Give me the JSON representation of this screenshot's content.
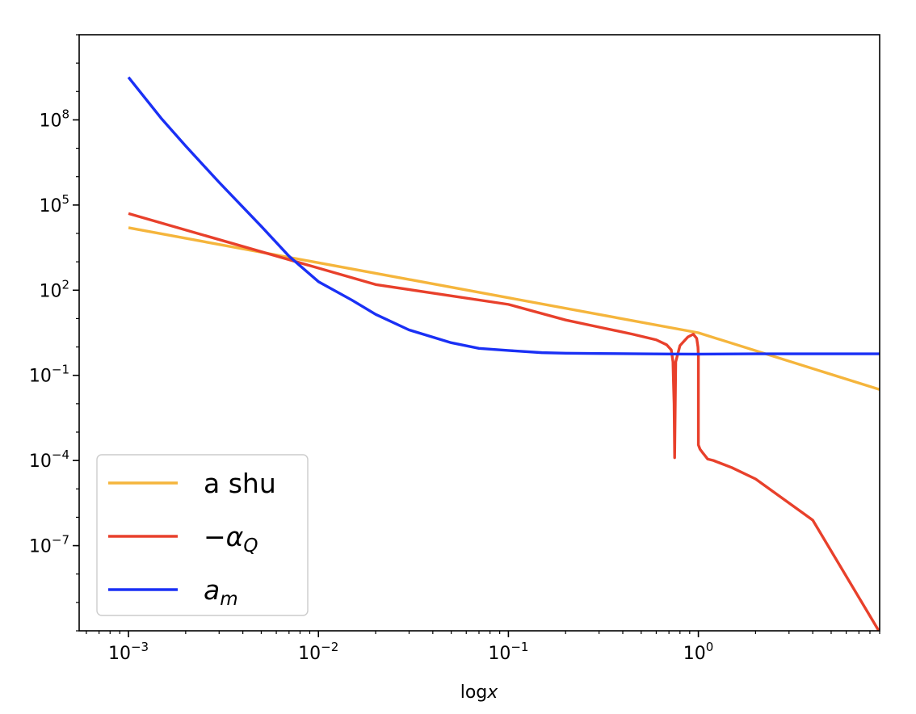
{
  "chart_data": {
    "type": "line",
    "title": "",
    "xlabel": "log",
    "xlabel_var": "x",
    "ylabel": "",
    "xscale": "log",
    "yscale": "log",
    "xlim": [
      0.00055,
      9.0
    ],
    "ylim": [
      1e-10,
      100000000000.0
    ],
    "grid": false,
    "legend_position": "lower-left",
    "x_ticks": [
      {
        "value": 0.001,
        "base": "10",
        "exp": "−3"
      },
      {
        "value": 0.01,
        "base": "10",
        "exp": "−2"
      },
      {
        "value": 0.1,
        "base": "10",
        "exp": "−1"
      },
      {
        "value": 1,
        "base": "10",
        "exp": "0"
      }
    ],
    "y_ticks": [
      {
        "value": 1e-07,
        "base": "10",
        "exp": "−7"
      },
      {
        "value": 0.0001,
        "base": "10",
        "exp": "−4"
      },
      {
        "value": 0.1,
        "base": "10",
        "exp": "−1"
      },
      {
        "value": 100,
        "base": "10",
        "exp": "2"
      },
      {
        "value": 100000.0,
        "base": "10",
        "exp": "5"
      },
      {
        "value": 100000000.0,
        "base": "10",
        "exp": "8"
      }
    ],
    "series": [
      {
        "name": "a shu",
        "legend_main": "a shu",
        "legend_sub": "",
        "color": "#f5b53c",
        "x": [
          0.001,
          1.0,
          9.0
        ],
        "y": [
          15848,
          3.16,
          0.0316
        ]
      },
      {
        "name": "−αQ",
        "legend_main": "−α",
        "legend_sub": "Q",
        "color": "#e8402b",
        "x": [
          0.001,
          0.02,
          0.1,
          0.2,
          0.3,
          0.45,
          0.6,
          0.68,
          0.72,
          0.735,
          0.74,
          0.745,
          0.75,
          0.76,
          0.8,
          0.88,
          0.94,
          0.98,
          0.995,
          1.0,
          1.0,
          1.02,
          1.06,
          1.12,
          1.2,
          1.5,
          2.0,
          4.0,
          9.0
        ],
        "y": [
          50119,
          158,
          31.6,
          8.91,
          5.01,
          2.82,
          1.78,
          1.2,
          0.79,
          0.3,
          0.05,
          0.01,
          0.000126,
          0.3,
          1.12,
          2.24,
          2.82,
          2.0,
          1.0,
          0.5,
          0.000355,
          0.000251,
          0.000178,
          0.000112,
          0.0001,
          5.62e-05,
          2.24e-05,
          7.94e-07,
          8.91e-11
        ],
        "y_note": "values for the first segment follow y = 50119 * (x/0.001)^-3.4 up to x≈0.1"
      },
      {
        "name": "am",
        "legend_main": "a",
        "legend_sub": "m",
        "color": "#1a30f5",
        "x": [
          0.001,
          0.0015,
          0.002,
          0.003,
          0.005,
          0.007,
          0.01,
          0.015,
          0.02,
          0.03,
          0.05,
          0.07,
          0.1,
          0.15,
          0.2,
          0.3,
          0.5,
          0.7,
          1.0,
          2.0,
          9.0
        ],
        "y": [
          3162277660,
          106000000,
          12000000,
          630000,
          17800,
          1580,
          200,
          44.7,
          14.1,
          3.98,
          1.41,
          0.89,
          0.75,
          0.63,
          0.603,
          0.589,
          0.575,
          0.563,
          0.56,
          0.575,
          0.575
        ]
      }
    ]
  }
}
